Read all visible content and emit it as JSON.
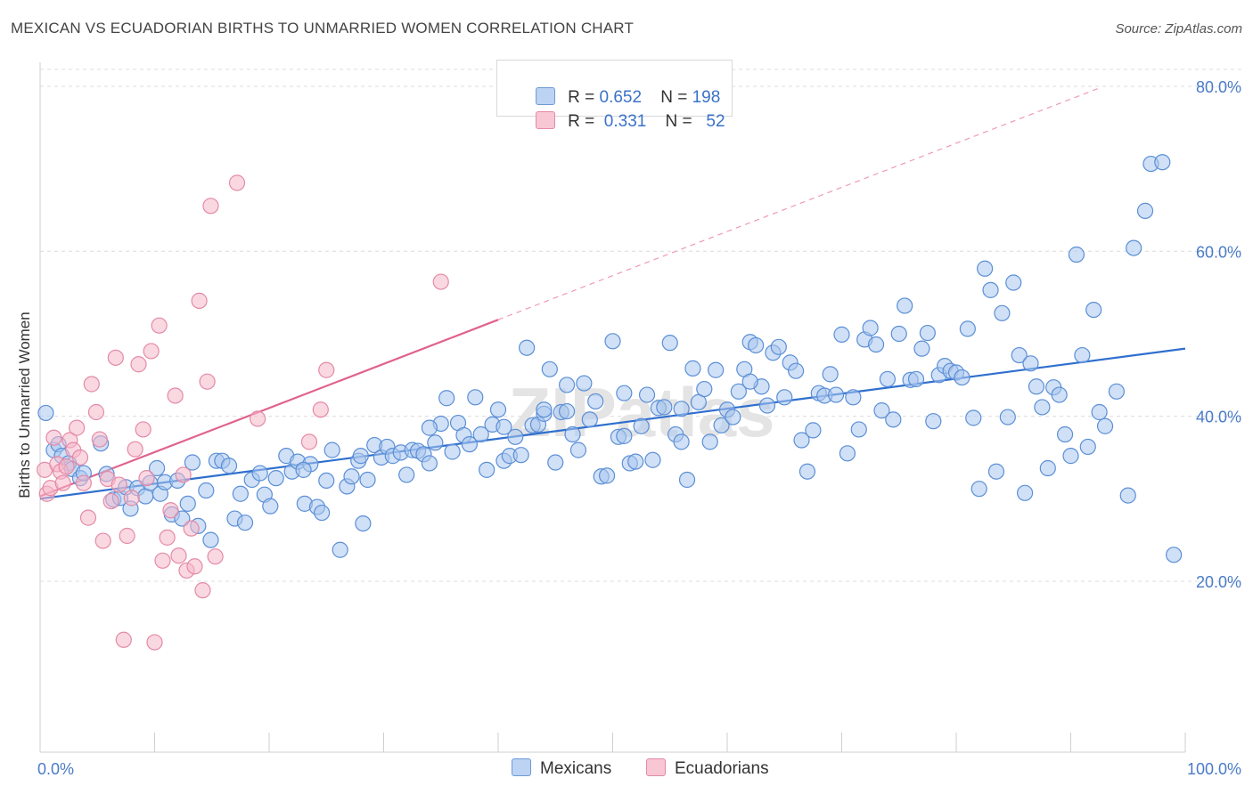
{
  "title": "MEXICAN VS ECUADORIAN BIRTHS TO UNMARRIED WOMEN CORRELATION CHART",
  "source": "Source: ZipAtlas.com",
  "watermark": "ZIPatlas",
  "legend": {
    "rows": [
      {
        "r_label": "R =",
        "r_value": "0.652",
        "n_label": "N =",
        "n_value": "198"
      },
      {
        "r_label": "R =",
        "r_value": "0.331",
        "n_label": "N =",
        "n_value": "52"
      }
    ]
  },
  "bottom_legend": {
    "mexicans": "Mexicans",
    "ecuadorians": "Ecuadorians"
  },
  "colors": {
    "mexicans_fill": "#a9c6ef",
    "mexicans_stroke": "#5b8fd6",
    "mexicans_line": "#2f6fce",
    "ecuadorians_fill": "#f5b8ca",
    "ecuadorians_stroke": "#e48aa6",
    "ecuadorians_line": "#e0628c",
    "grid": "#dcdcdc",
    "tick_text": "#4a7bc8"
  },
  "chart_data": {
    "type": "scatter",
    "title": "MEXICAN VS ECUADORIAN BIRTHS TO UNMARRIED WOMEN CORRELATION CHART",
    "xlabel": "",
    "ylabel": "Births to Unmarried Women",
    "xlim": [
      0,
      100
    ],
    "ylim": [
      0,
      86
    ],
    "x_tick_labels": [
      "0.0%",
      "100.0%"
    ],
    "y_ticks": [
      20,
      40,
      60,
      80
    ],
    "y_tick_labels": [
      "20.0%",
      "40.0%",
      "60.0%",
      "80.0%"
    ],
    "grid": true,
    "legend_position": "top-center",
    "series": [
      {
        "name": "Mexicans",
        "R": 0.652,
        "N": 198,
        "trend": {
          "x": [
            0,
            100
          ],
          "y": [
            30.0,
            48.2
          ]
        },
        "points": [
          [
            0.5,
            40.4
          ],
          [
            1.2,
            35.9
          ],
          [
            1.6,
            36.6
          ],
          [
            1.9,
            35.2
          ],
          [
            2.5,
            34.3
          ],
          [
            2.8,
            33.6
          ],
          [
            3.5,
            32.5
          ],
          [
            3.8,
            33.1
          ],
          [
            5.3,
            36.7
          ],
          [
            5.8,
            33.0
          ],
          [
            6.4,
            29.9
          ],
          [
            7.0,
            30.1
          ],
          [
            7.5,
            31.4
          ],
          [
            7.9,
            28.8
          ],
          [
            8.5,
            31.3
          ],
          [
            9.2,
            30.3
          ],
          [
            9.6,
            31.9
          ],
          [
            10.2,
            33.7
          ],
          [
            10.5,
            30.6
          ],
          [
            10.9,
            32.0
          ],
          [
            11.5,
            28.1
          ],
          [
            12.0,
            32.2
          ],
          [
            12.4,
            27.6
          ],
          [
            12.9,
            29.4
          ],
          [
            13.3,
            34.4
          ],
          [
            13.8,
            26.7
          ],
          [
            14.5,
            31.0
          ],
          [
            14.9,
            25.0
          ],
          [
            15.4,
            34.6
          ],
          [
            15.9,
            34.6
          ],
          [
            16.5,
            34.0
          ],
          [
            17.0,
            27.6
          ],
          [
            17.5,
            30.6
          ],
          [
            17.9,
            27.1
          ],
          [
            18.5,
            32.3
          ],
          [
            19.2,
            33.1
          ],
          [
            19.6,
            30.5
          ],
          [
            20.1,
            29.1
          ],
          [
            20.6,
            32.5
          ],
          [
            21.5,
            35.2
          ],
          [
            22.0,
            33.3
          ],
          [
            22.5,
            34.5
          ],
          [
            23.1,
            29.4
          ],
          [
            23.6,
            34.2
          ],
          [
            24.2,
            29.0
          ],
          [
            24.6,
            28.3
          ],
          [
            25.0,
            32.2
          ],
          [
            25.5,
            35.9
          ],
          [
            26.2,
            23.8
          ],
          [
            26.8,
            31.5
          ],
          [
            27.2,
            32.7
          ],
          [
            27.8,
            34.6
          ],
          [
            28.2,
            27.0
          ],
          [
            28.6,
            32.3
          ],
          [
            29.2,
            36.5
          ],
          [
            29.8,
            35.0
          ],
          [
            30.3,
            36.3
          ],
          [
            30.8,
            35.2
          ],
          [
            31.5,
            35.6
          ],
          [
            32.0,
            32.9
          ],
          [
            32.5,
            35.9
          ],
          [
            33.0,
            35.8
          ],
          [
            33.5,
            35.4
          ],
          [
            34.0,
            34.3
          ],
          [
            34.5,
            36.8
          ],
          [
            35.0,
            39.1
          ],
          [
            35.5,
            42.2
          ],
          [
            36.0,
            35.7
          ],
          [
            36.5,
            39.2
          ],
          [
            37.0,
            37.7
          ],
          [
            37.5,
            36.6
          ],
          [
            38.0,
            42.3
          ],
          [
            38.5,
            37.8
          ],
          [
            39.0,
            33.5
          ],
          [
            39.5,
            39.0
          ],
          [
            40.0,
            40.8
          ],
          [
            40.5,
            34.6
          ],
          [
            41.0,
            35.2
          ],
          [
            41.5,
            37.5
          ],
          [
            42.0,
            35.3
          ],
          [
            42.5,
            48.3
          ],
          [
            43.0,
            38.9
          ],
          [
            43.5,
            39.0
          ],
          [
            44.0,
            40.3
          ],
          [
            44.5,
            45.7
          ],
          [
            45.0,
            34.4
          ],
          [
            45.5,
            40.5
          ],
          [
            46.0,
            40.6
          ],
          [
            46.5,
            37.8
          ],
          [
            47.0,
            35.9
          ],
          [
            47.5,
            44.0
          ],
          [
            48.0,
            39.6
          ],
          [
            48.5,
            41.8
          ],
          [
            49.0,
            32.7
          ],
          [
            49.5,
            32.8
          ],
          [
            50.0,
            49.1
          ],
          [
            50.5,
            37.5
          ],
          [
            51.0,
            37.6
          ],
          [
            51.5,
            34.3
          ],
          [
            52.0,
            34.5
          ],
          [
            52.5,
            38.8
          ],
          [
            53.0,
            42.6
          ],
          [
            53.5,
            34.7
          ],
          [
            54.0,
            41.0
          ],
          [
            54.5,
            41.1
          ],
          [
            55.0,
            48.9
          ],
          [
            55.5,
            37.8
          ],
          [
            56.0,
            36.9
          ],
          [
            56.5,
            32.3
          ],
          [
            57.0,
            45.8
          ],
          [
            57.5,
            41.7
          ],
          [
            58.0,
            43.3
          ],
          [
            58.5,
            36.9
          ],
          [
            59.0,
            45.6
          ],
          [
            59.5,
            38.9
          ],
          [
            60.0,
            40.8
          ],
          [
            60.5,
            39.9
          ],
          [
            61.0,
            43.0
          ],
          [
            61.5,
            45.7
          ],
          [
            62.0,
            49.0
          ],
          [
            62.5,
            48.6
          ],
          [
            63.0,
            43.6
          ],
          [
            63.5,
            41.3
          ],
          [
            64.0,
            47.7
          ],
          [
            64.5,
            48.4
          ],
          [
            65.0,
            42.3
          ],
          [
            65.5,
            46.5
          ],
          [
            66.0,
            45.5
          ],
          [
            66.5,
            37.1
          ],
          [
            67.0,
            33.3
          ],
          [
            67.5,
            38.3
          ],
          [
            68.0,
            42.8
          ],
          [
            68.5,
            42.5
          ],
          [
            69.0,
            45.1
          ],
          [
            69.5,
            42.6
          ],
          [
            70.0,
            49.9
          ],
          [
            70.5,
            35.5
          ],
          [
            71.0,
            42.3
          ],
          [
            71.5,
            38.4
          ],
          [
            72.0,
            49.3
          ],
          [
            72.5,
            50.7
          ],
          [
            73.0,
            48.7
          ],
          [
            73.5,
            40.7
          ],
          [
            74.0,
            44.5
          ],
          [
            74.5,
            39.6
          ],
          [
            75.0,
            50.0
          ],
          [
            75.5,
            53.4
          ],
          [
            76.0,
            44.4
          ],
          [
            76.5,
            44.5
          ],
          [
            77.0,
            48.2
          ],
          [
            77.5,
            50.1
          ],
          [
            78.0,
            39.4
          ],
          [
            78.5,
            45.0
          ],
          [
            79.0,
            46.1
          ],
          [
            79.5,
            45.5
          ],
          [
            80.0,
            45.3
          ],
          [
            80.5,
            44.7
          ],
          [
            81.0,
            50.6
          ],
          [
            81.5,
            39.8
          ],
          [
            82.0,
            31.2
          ],
          [
            82.5,
            57.9
          ],
          [
            83.0,
            55.3
          ],
          [
            83.5,
            33.3
          ],
          [
            84.0,
            52.5
          ],
          [
            84.5,
            39.9
          ],
          [
            85.0,
            56.2
          ],
          [
            85.5,
            47.4
          ],
          [
            86.0,
            30.7
          ],
          [
            86.5,
            46.4
          ],
          [
            87.0,
            43.6
          ],
          [
            87.5,
            41.1
          ],
          [
            88.0,
            33.7
          ],
          [
            88.5,
            43.5
          ],
          [
            89.0,
            42.6
          ],
          [
            89.5,
            37.8
          ],
          [
            90.0,
            35.2
          ],
          [
            90.5,
            59.6
          ],
          [
            91.0,
            47.4
          ],
          [
            91.5,
            36.3
          ],
          [
            92.0,
            52.9
          ],
          [
            92.5,
            40.5
          ],
          [
            93.0,
            38.8
          ],
          [
            94.0,
            43.0
          ],
          [
            95.0,
            30.4
          ],
          [
            95.5,
            60.4
          ],
          [
            96.5,
            64.9
          ],
          [
            97.0,
            70.6
          ],
          [
            98.0,
            70.8
          ],
          [
            99.0,
            23.2
          ],
          [
            44.0,
            40.8
          ],
          [
            56.0,
            40.9
          ],
          [
            62.0,
            44.2
          ],
          [
            23.0,
            33.5
          ],
          [
            28.0,
            35.2
          ],
          [
            34.0,
            38.6
          ],
          [
            40.5,
            38.7
          ],
          [
            46.0,
            43.8
          ],
          [
            51.0,
            42.8
          ]
        ]
      },
      {
        "name": "Ecuadorians",
        "R": 0.331,
        "N": 52,
        "trend": {
          "x": [
            0,
            40
          ],
          "y": [
            30.3,
            51.7
          ]
        },
        "points": [
          [
            0.4,
            33.5
          ],
          [
            0.6,
            30.6
          ],
          [
            0.9,
            31.3
          ],
          [
            1.2,
            37.4
          ],
          [
            1.5,
            34.2
          ],
          [
            1.8,
            33.3
          ],
          [
            2.0,
            31.9
          ],
          [
            2.3,
            33.9
          ],
          [
            2.6,
            37.1
          ],
          [
            2.9,
            35.9
          ],
          [
            3.2,
            38.6
          ],
          [
            3.5,
            35.0
          ],
          [
            3.8,
            31.9
          ],
          [
            4.2,
            27.7
          ],
          [
            4.5,
            43.9
          ],
          [
            4.9,
            40.5
          ],
          [
            5.2,
            37.2
          ],
          [
            5.5,
            24.9
          ],
          [
            5.9,
            32.4
          ],
          [
            6.2,
            29.7
          ],
          [
            6.6,
            47.1
          ],
          [
            6.9,
            31.7
          ],
          [
            7.3,
            12.9
          ],
          [
            7.6,
            25.5
          ],
          [
            8.0,
            30.1
          ],
          [
            8.3,
            36.0
          ],
          [
            8.6,
            46.3
          ],
          [
            9.0,
            38.4
          ],
          [
            9.3,
            32.5
          ],
          [
            9.7,
            47.9
          ],
          [
            10.0,
            12.6
          ],
          [
            10.4,
            51.0
          ],
          [
            10.7,
            22.5
          ],
          [
            11.1,
            25.3
          ],
          [
            11.4,
            28.6
          ],
          [
            11.8,
            42.5
          ],
          [
            12.1,
            23.1
          ],
          [
            12.5,
            32.9
          ],
          [
            12.8,
            21.3
          ],
          [
            13.2,
            26.4
          ],
          [
            13.5,
            21.8
          ],
          [
            13.9,
            54.0
          ],
          [
            14.2,
            18.9
          ],
          [
            14.6,
            44.2
          ],
          [
            14.9,
            65.5
          ],
          [
            15.3,
            23.0
          ],
          [
            17.2,
            68.3
          ],
          [
            19.0,
            39.7
          ],
          [
            23.5,
            36.9
          ],
          [
            24.5,
            40.8
          ],
          [
            25.0,
            45.6
          ],
          [
            35.0,
            56.3
          ]
        ]
      }
    ]
  }
}
